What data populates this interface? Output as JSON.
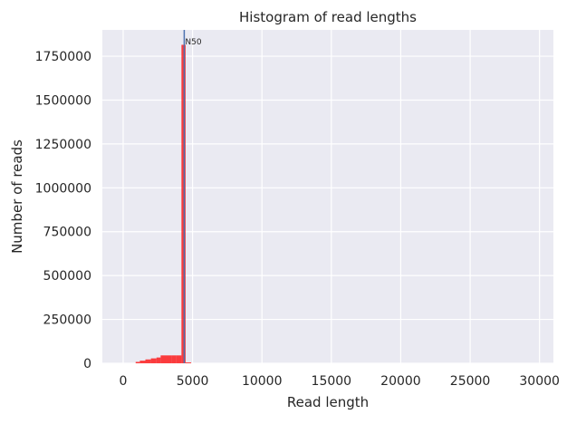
{
  "chart_data": {
    "type": "bar",
    "title": "Histogram of read lengths",
    "xlabel": "Read length",
    "ylabel": "Number of reads",
    "xlim": [
      -1500,
      31000
    ],
    "ylim": [
      0,
      1900000
    ],
    "x_ticks": [
      0,
      5000,
      10000,
      15000,
      20000,
      25000,
      30000
    ],
    "x_tick_labels": [
      "0",
      "5000",
      "10000",
      "15000",
      "20000",
      "25000",
      "30000"
    ],
    "y_ticks": [
      0,
      250000,
      500000,
      750000,
      1000000,
      1250000,
      1500000,
      1750000
    ],
    "y_tick_labels": [
      "0",
      "250000",
      "500000",
      "750000",
      "1000000",
      "1250000",
      "1500000",
      "1750000"
    ],
    "grid": true,
    "bar_color": "#ff0000",
    "background_color": "#eaeaf2",
    "bins": [
      {
        "x0": 900,
        "x1": 1200,
        "count": 8000
      },
      {
        "x0": 1200,
        "x1": 1600,
        "count": 15000
      },
      {
        "x0": 1600,
        "x1": 2000,
        "count": 22000
      },
      {
        "x0": 2000,
        "x1": 2400,
        "count": 28000
      },
      {
        "x0": 2400,
        "x1": 2700,
        "count": 33000
      },
      {
        "x0": 2700,
        "x1": 3100,
        "count": 45000
      },
      {
        "x0": 3100,
        "x1": 3500,
        "count": 45000
      },
      {
        "x0": 3500,
        "x1": 3800,
        "count": 45000
      },
      {
        "x0": 3800,
        "x1": 4200,
        "count": 45000
      },
      {
        "x0": 4200,
        "x1": 4500,
        "count": 1815000
      },
      {
        "x0": 4500,
        "x1": 4900,
        "count": 5000
      }
    ],
    "vline": {
      "x": 4400,
      "label": "N50",
      "color": "#4c72b0"
    }
  }
}
